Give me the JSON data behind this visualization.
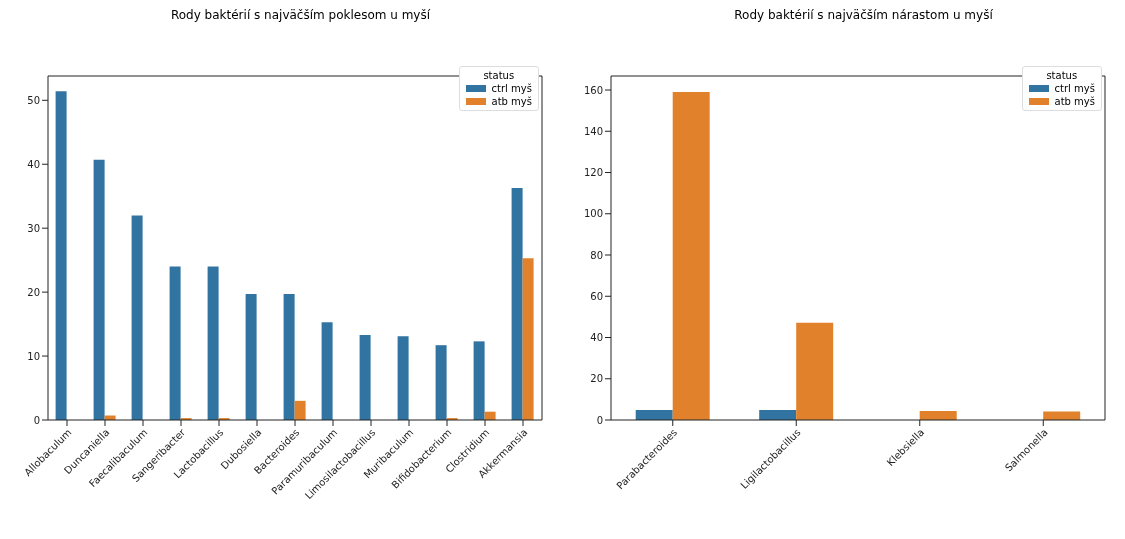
{
  "chart_data": [
    {
      "type": "bar",
      "title": "Rody baktérií s najväčším poklesom u myší",
      "categories": [
        "Allobaculum",
        "Duncaniella",
        "Faecalibaculum",
        "Sangeribacter",
        "Lactobacillus",
        "Dubosiella",
        "Bacteroides",
        "Paramuribaculum",
        "Limosilactobacillus",
        "Muribaculum",
        "Bifidobacterium",
        "Clostridium",
        "Akkermansia"
      ],
      "series": [
        {
          "name": "ctrl myš",
          "color": "#3274a1",
          "values": [
            51.4,
            40.7,
            32.0,
            24.0,
            24.0,
            19.7,
            19.7,
            15.3,
            13.3,
            13.1,
            11.7,
            12.3,
            36.3
          ]
        },
        {
          "name": "atb myš",
          "color": "#e1812c",
          "values": [
            0,
            0.7,
            0,
            0.3,
            0.3,
            0,
            3.0,
            0,
            0,
            0,
            0.3,
            1.3,
            25.3
          ]
        }
      ],
      "ylim": [
        0,
        53.8
      ],
      "yticks": [
        0,
        10,
        20,
        30,
        40,
        50
      ],
      "grid": false,
      "legend": "top right",
      "legend_title": "status"
    },
    {
      "type": "bar",
      "title": "Rody baktérií s najväčším nárastom u myší",
      "categories": [
        "Parabacteroides",
        "Ligilactobacillus",
        "Klebsiella",
        "Salmonella"
      ],
      "series": [
        {
          "name": "ctrl myš",
          "color": "#3274a1",
          "values": [
            4.9,
            4.9,
            0,
            0
          ]
        },
        {
          "name": "atb myš",
          "color": "#e1812c",
          "values": [
            159.1,
            47.2,
            4.4,
            4.1
          ]
        }
      ],
      "ylim": [
        0,
        166.8
      ],
      "yticks": [
        0,
        20,
        40,
        60,
        80,
        100,
        120,
        140,
        160
      ],
      "grid": false,
      "legend": "top right",
      "legend_title": "status"
    }
  ]
}
